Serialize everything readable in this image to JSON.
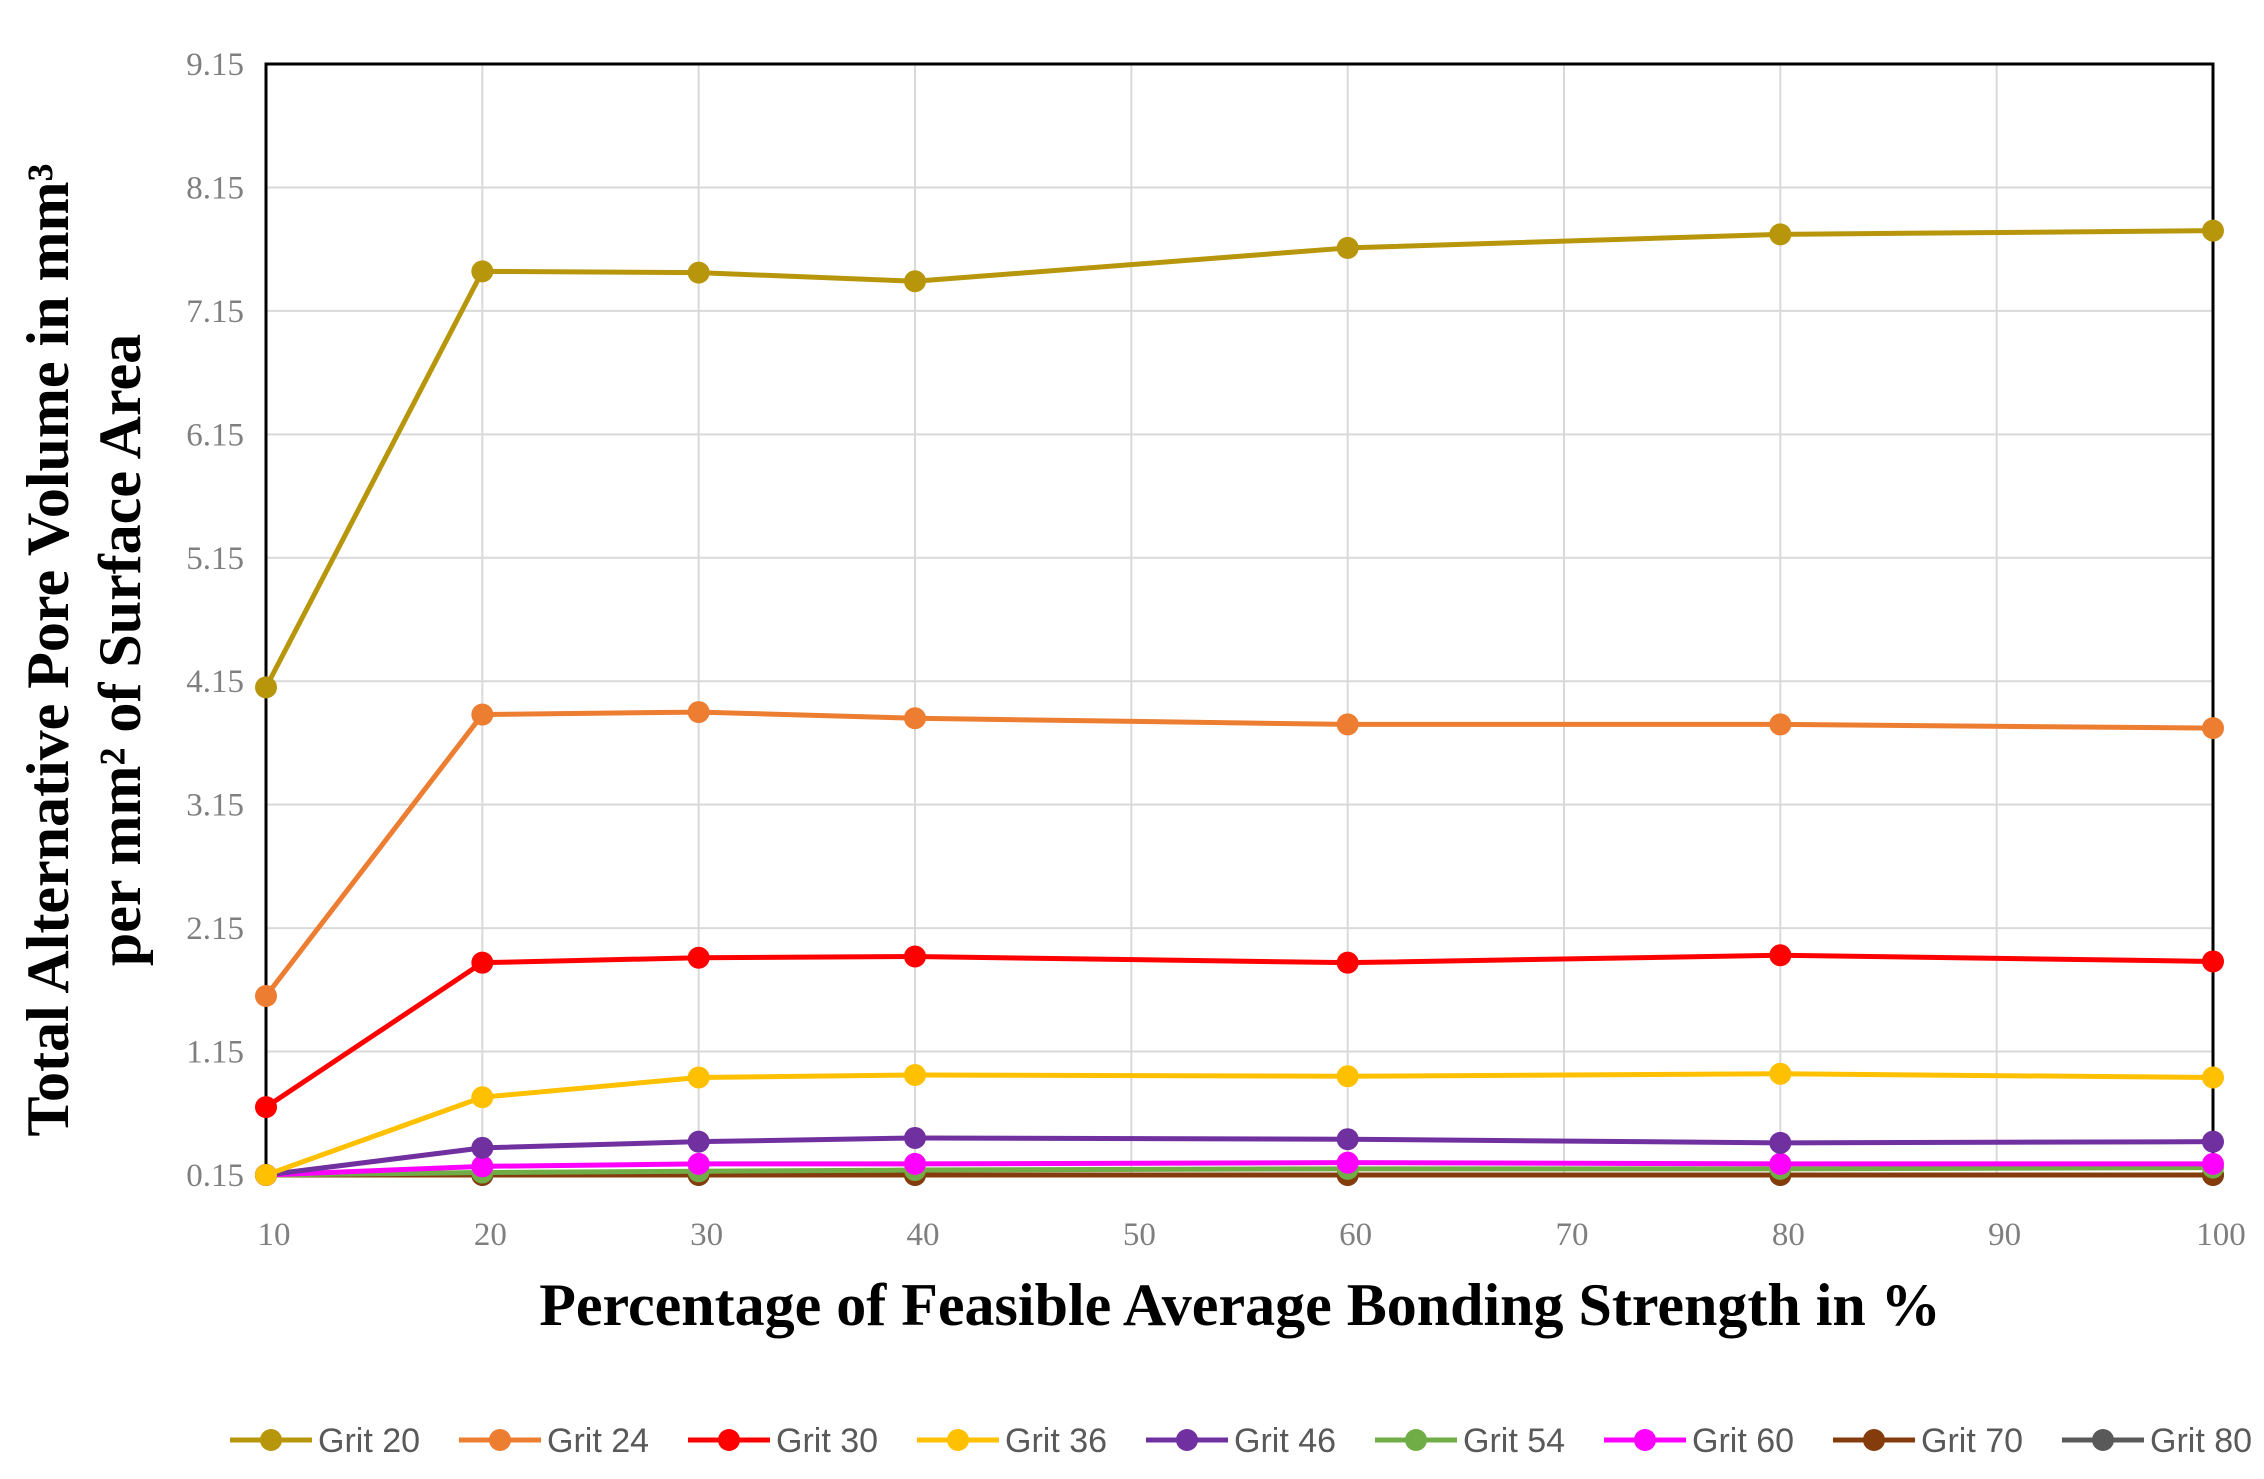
{
  "chart_data": {
    "type": "line",
    "xlabel": "Percentage of Feasible Average Bonding Strength in %",
    "ylabel_line1": "Total Alternative Pore Volume in mm³",
    "ylabel_line2": "per mm² of Surface Area",
    "xlim": [
      10,
      100
    ],
    "ylim": [
      0.15,
      9.15
    ],
    "xticks": [
      10,
      20,
      30,
      40,
      50,
      60,
      70,
      80,
      90,
      100
    ],
    "yticks": [
      "0.15",
      "1.15",
      "2.15",
      "3.15",
      "4.15",
      "5.15",
      "6.15",
      "7.15",
      "8.15",
      "9.15"
    ],
    "x": [
      10,
      20,
      30,
      40,
      60,
      80,
      100
    ],
    "grid": true,
    "legend_position": "bottom",
    "series": [
      {
        "name": "Grit 20",
        "color": "#b8960c",
        "values": [
          4.1,
          7.47,
          7.46,
          7.39,
          7.66,
          7.77,
          7.8
        ]
      },
      {
        "name": "Grit 24",
        "color": "#ed7d31",
        "values": [
          1.6,
          3.88,
          3.9,
          3.85,
          3.8,
          3.8,
          3.77
        ]
      },
      {
        "name": "Grit 30",
        "color": "#ff0000",
        "values": [
          0.7,
          1.87,
          1.91,
          1.92,
          1.87,
          1.93,
          1.88
        ]
      },
      {
        "name": "Grit 36",
        "color": "#ffc000",
        "values": [
          0.15,
          0.78,
          0.94,
          0.96,
          0.95,
          0.97,
          0.94
        ]
      },
      {
        "name": "Grit 46",
        "color": "#7030a0",
        "values": [
          0.15,
          0.37,
          0.42,
          0.45,
          0.44,
          0.41,
          0.42
        ]
      },
      {
        "name": "Grit 54",
        "color": "#70ad47",
        "values": [
          0.15,
          0.17,
          0.18,
          0.19,
          0.2,
          0.2,
          0.21
        ]
      },
      {
        "name": "Grit 60",
        "color": "#ff00ff",
        "values": [
          0.15,
          0.22,
          0.24,
          0.24,
          0.25,
          0.24,
          0.24
        ]
      },
      {
        "name": "Grit 70",
        "color": "#843c0c",
        "values": [
          0.15,
          0.15,
          0.15,
          0.15,
          0.15,
          0.15,
          0.15
        ]
      },
      {
        "name": "Grit 80",
        "color": "#595959",
        "values": [
          0.15,
          0.15,
          0.15,
          0.15,
          0.15,
          0.15,
          0.15
        ]
      }
    ]
  }
}
